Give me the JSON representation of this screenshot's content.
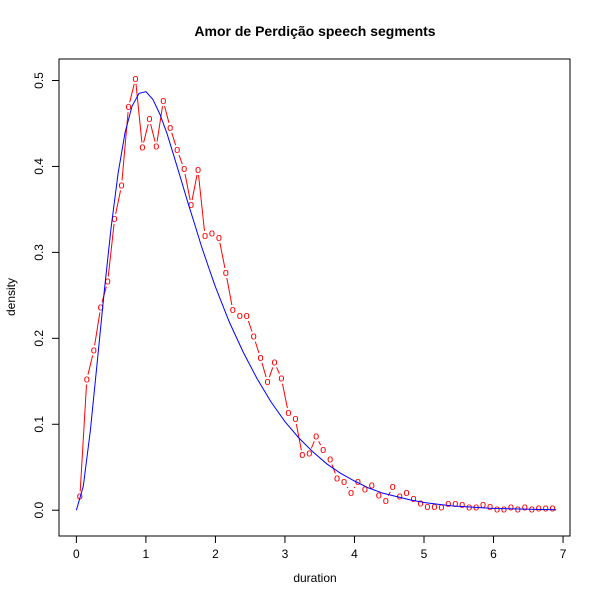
{
  "chart_data": {
    "type": "line",
    "title": "Amor de Perdição speech segments",
    "xlabel": "duration",
    "ylabel": "density",
    "xlim": [
      -0.25,
      7.1
    ],
    "ylim": [
      -0.03,
      0.525
    ],
    "xticks": [
      0,
      1,
      2,
      3,
      4,
      5,
      6,
      7
    ],
    "yticks": [
      0.0,
      0.1,
      0.2,
      0.3,
      0.4,
      0.5
    ],
    "xtick_labels": [
      "0",
      "1",
      "2",
      "3",
      "4",
      "5",
      "6",
      "7"
    ],
    "ytick_labels": [
      "0.0",
      "0.1",
      "0.2",
      "0.3",
      "0.4",
      "0.5"
    ],
    "grid": false,
    "legend": "none",
    "series": [
      {
        "kind": "observed",
        "marker": "o",
        "color": "#ff0000",
        "x": [
          0.05,
          0.15,
          0.25,
          0.35,
          0.45,
          0.55,
          0.65,
          0.75,
          0.85,
          0.95,
          1.05,
          1.15,
          1.25,
          1.35,
          1.45,
          1.55,
          1.65,
          1.75,
          1.85,
          1.95,
          2.05,
          2.15,
          2.25,
          2.35,
          2.45,
          2.55,
          2.65,
          2.75,
          2.85,
          2.95,
          3.05,
          3.15,
          3.25,
          3.35,
          3.45,
          3.55,
          3.65,
          3.75,
          3.85,
          3.95,
          4.05,
          4.15,
          4.25,
          4.35,
          4.45,
          4.55,
          4.65,
          4.75,
          4.85,
          4.95,
          5.05,
          5.15,
          5.25,
          5.35,
          5.45,
          5.55,
          5.65,
          5.75,
          5.85,
          5.95,
          6.05,
          6.15,
          6.25,
          6.35,
          6.45,
          6.55,
          6.65,
          6.75,
          6.85
        ],
        "y": [
          0.016,
          0.152,
          0.186,
          0.236,
          0.266,
          0.339,
          0.378,
          0.469,
          0.502,
          0.422,
          0.455,
          0.423,
          0.476,
          0.445,
          0.419,
          0.397,
          0.355,
          0.396,
          0.319,
          0.322,
          0.317,
          0.276,
          0.233,
          0.226,
          0.226,
          0.202,
          0.177,
          0.149,
          0.172,
          0.153,
          0.113,
          0.106,
          0.064,
          0.066,
          0.086,
          0.07,
          0.059,
          0.037,
          0.033,
          0.02,
          0.033,
          0.024,
          0.029,
          0.017,
          0.011,
          0.027,
          0.016,
          0.02,
          0.013,
          0.008,
          0.004,
          0.004,
          0.003,
          0.007,
          0.007,
          0.006,
          0.003,
          0.003,
          0.006,
          0.004,
          0.001,
          0.001,
          0.003,
          0.001,
          0.003,
          0.001,
          0.002,
          0.002,
          0.002
        ]
      },
      {
        "kind": "fitted",
        "color": "#0000ff",
        "x": [
          0,
          0.1,
          0.2,
          0.3,
          0.4,
          0.5,
          0.6,
          0.7,
          0.8,
          0.9,
          1.0,
          1.1,
          1.2,
          1.3,
          1.4,
          1.5,
          1.6,
          1.7,
          1.8,
          1.9,
          2.0,
          2.2,
          2.4,
          2.6,
          2.8,
          3.0,
          3.2,
          3.4,
          3.6,
          3.8,
          4.0,
          4.2,
          4.4,
          4.6,
          4.8,
          5.0,
          5.2,
          5.4,
          5.6,
          5.8,
          6.0,
          6.3,
          6.6,
          6.9
        ],
        "y": [
          0,
          0.028,
          0.092,
          0.172,
          0.254,
          0.329,
          0.392,
          0.439,
          0.47,
          0.485,
          0.487,
          0.478,
          0.461,
          0.439,
          0.413,
          0.386,
          0.359,
          0.333,
          0.307,
          0.283,
          0.26,
          0.219,
          0.184,
          0.153,
          0.126,
          0.103,
          0.084,
          0.068,
          0.054,
          0.043,
          0.034,
          0.026,
          0.02,
          0.016,
          0.012,
          0.009,
          0.007,
          0.005,
          0.004,
          0.003,
          0.002,
          0.0015,
          0.001,
          0.0005
        ]
      }
    ]
  }
}
